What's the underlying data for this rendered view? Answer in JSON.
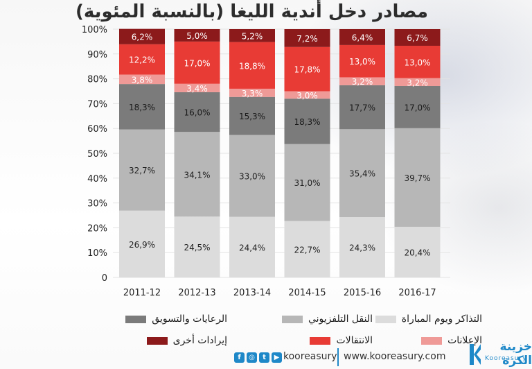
{
  "title": "مصادر دخل أندية الليغا (بالنسبة المئوية)",
  "chart_data": {
    "type": "bar",
    "stacked": true,
    "categories": [
      "2011-12",
      "2012-13",
      "2013-14",
      "2014-15",
      "2015-16",
      "2016-17"
    ],
    "ylim": [
      0,
      100
    ],
    "yticks": [
      "0",
      "10%",
      "20%",
      "30%",
      "40%",
      "50%",
      "60%",
      "70%",
      "80%",
      "90%",
      "100%"
    ],
    "series": [
      {
        "name": "التذاكر ويوم المباراة",
        "color": "#dcdcdc",
        "labelColor": "#222222",
        "values": [
          26.9,
          24.5,
          24.4,
          22.7,
          24.3,
          20.4
        ],
        "labels": [
          "26,9%",
          "24,5%",
          "24,4%",
          "22,7%",
          "24,3%",
          "20,4%"
        ]
      },
      {
        "name": "النقل التلفزيوني",
        "color": "#b7b7b7",
        "labelColor": "#222222",
        "values": [
          32.7,
          34.1,
          33.0,
          31.0,
          35.4,
          39.7
        ],
        "labels": [
          "32,7%",
          "34,1%",
          "33,0%",
          "31,0%",
          "35,4%",
          "39,7%"
        ]
      },
      {
        "name": "الرعايات والتسويق",
        "color": "#7b7b7b",
        "labelColor": "#1a1a1a",
        "values": [
          18.3,
          16.0,
          15.3,
          18.3,
          17.7,
          17.0
        ],
        "labels": [
          "18,3%",
          "16,0%",
          "15,3%",
          "18,3%",
          "17,7%",
          "17,0%"
        ]
      },
      {
        "name": "الإعلانات",
        "color": "#ef9a97",
        "labelColor": "#ffffff",
        "values": [
          3.8,
          3.4,
          3.3,
          3.0,
          3.2,
          3.2
        ],
        "labels": [
          "3,8%",
          "3,4%",
          "3,3%",
          "3,0%",
          "3,2%",
          "3,2%"
        ]
      },
      {
        "name": "الانتقالات",
        "color": "#e83b35",
        "labelColor": "#ffffff",
        "values": [
          12.2,
          17.0,
          18.8,
          17.8,
          13.0,
          13.0
        ],
        "labels": [
          "12,2%",
          "17,0%",
          "18,8%",
          "17,8%",
          "13,0%",
          "13,0%"
        ]
      },
      {
        "name": "إيرادات أخرى",
        "color": "#8c1a1b",
        "labelColor": "#ffffff",
        "values": [
          6.2,
          5.0,
          5.2,
          7.2,
          6.4,
          6.7
        ],
        "labels": [
          "6,2%",
          "5,0%",
          "5,2%",
          "7,2%",
          "6,4%",
          "6,7%"
        ]
      }
    ],
    "legend_placement": "bottom"
  },
  "legend": [
    {
      "label": "الرعايات والتسويق",
      "color": "#7b7b7b"
    },
    {
      "label": "النقل التلفزيوني",
      "color": "#b7b7b7"
    },
    {
      "label": "التذاكر ويوم المباراة",
      "color": "#dcdcdc"
    },
    {
      "label": "إيرادات أخرى",
      "color": "#8c1a1b"
    },
    {
      "label": "الانتقالات",
      "color": "#e83b35"
    },
    {
      "label": "الإعلانات",
      "color": "#ef9a97"
    }
  ],
  "footer": {
    "social_icons": [
      "facebook-icon",
      "instagram-icon",
      "twitter-icon",
      "youtube-icon"
    ],
    "handle": "kooreasury",
    "website": "www.kooreasury.com",
    "logo_arabic": "خزينة الكرة",
    "logo_english": "Kooreasury",
    "accent": "#1e88c8"
  }
}
